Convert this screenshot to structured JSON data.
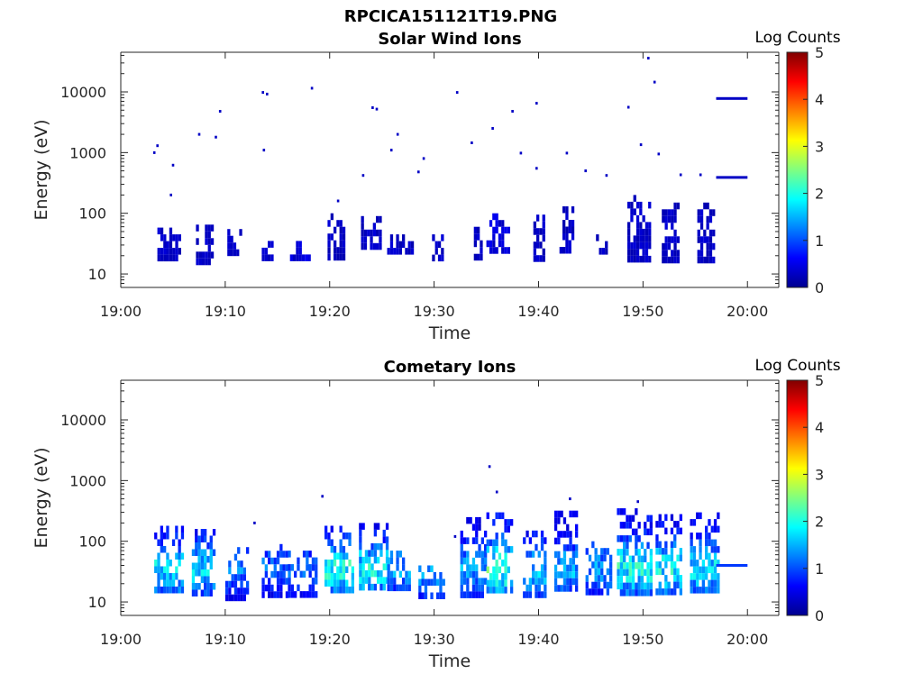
{
  "figure": {
    "filename_title": "RPCICA151121T19.PNG"
  },
  "colormap": [
    "#00008f",
    "#0000ff",
    "#0080ff",
    "#00ffff",
    "#80ff80",
    "#ffff00",
    "#ff8000",
    "#ff0000",
    "#800000"
  ],
  "chart_data": [
    {
      "type": "heatmap",
      "title": "Solar Wind Ions",
      "xlabel": "Time",
      "ylabel": "Energy (eV)",
      "yscale": "log",
      "xlim": [
        "19:00",
        "20:03"
      ],
      "ylim": [
        6,
        45000
      ],
      "xticks": [
        "19:00",
        "19:10",
        "19:20",
        "19:30",
        "19:40",
        "19:50",
        "20:00"
      ],
      "yticks": [
        "10",
        "100",
        "1000",
        "10000"
      ],
      "ytick_values": [
        10,
        100,
        1000,
        10000
      ],
      "colorbar": {
        "label": "Log Counts",
        "range": [
          0,
          5
        ],
        "ticks": [
          "0",
          "1",
          "2",
          "3",
          "4",
          "5"
        ]
      },
      "clusters": [
        {
          "t_start": "19:03.5",
          "t_end": "19:05.5",
          "e_min": 18,
          "e_max": 75,
          "level": 0.3
        },
        {
          "t_start": "19:07.2",
          "t_end": "19:08.8",
          "e_min": 14,
          "e_max": 65,
          "level": 0.3
        },
        {
          "t_start": "19:10.2",
          "t_end": "19:11.5",
          "e_min": 25,
          "e_max": 55,
          "level": 0.3
        },
        {
          "t_start": "19:13.5",
          "t_end": "19:14.5",
          "e_min": 20,
          "e_max": 35,
          "level": 0.3
        },
        {
          "t_start": "19:16.2",
          "t_end": "19:18.0",
          "e_min": 18,
          "e_max": 35,
          "level": 0.4
        },
        {
          "t_start": "19:19.8",
          "t_end": "19:21.5",
          "e_min": 20,
          "e_max": 100,
          "level": 0.3
        },
        {
          "t_start": "19:23.0",
          "t_end": "19:24.8",
          "e_min": 25,
          "e_max": 90,
          "level": 0.3
        },
        {
          "t_start": "19:25.5",
          "t_end": "19:27.8",
          "e_min": 25,
          "e_max": 45,
          "level": 0.3
        },
        {
          "t_start": "19:29.8",
          "t_end": "19:30.8",
          "e_min": 18,
          "e_max": 45,
          "level": 0.3
        },
        {
          "t_start": "19:33.8",
          "t_end": "19:34.5",
          "e_min": 20,
          "e_max": 100,
          "level": 0.3
        },
        {
          "t_start": "19:35.0",
          "t_end": "19:37.2",
          "e_min": 25,
          "e_max": 100,
          "level": 0.4
        },
        {
          "t_start": "19:39.5",
          "t_end": "19:40.6",
          "e_min": 18,
          "e_max": 95,
          "level": 0.3
        },
        {
          "t_start": "19:42.0",
          "t_end": "19:43.2",
          "e_min": 25,
          "e_max": 130,
          "level": 0.3
        },
        {
          "t_start": "19:45.5",
          "t_end": "19:46.5",
          "e_min": 25,
          "e_max": 45,
          "level": 0.3
        },
        {
          "t_start": "19:48.5",
          "t_end": "19:50.5",
          "e_min": 18,
          "e_max": 200,
          "level": 0.3
        },
        {
          "t_start": "19:51.8",
          "t_end": "19:53.4",
          "e_min": 18,
          "e_max": 150,
          "level": 0.3
        },
        {
          "t_start": "19:55.2",
          "t_end": "19:56.8",
          "e_min": 18,
          "e_max": 150,
          "level": 0.3
        }
      ],
      "isolated_points": [
        {
          "t": "19:03.2",
          "e": 1000
        },
        {
          "t": "19:03.5",
          "e": 1300
        },
        {
          "t": "19:05.0",
          "e": 620
        },
        {
          "t": "19:04.8",
          "e": 200
        },
        {
          "t": "19:07.5",
          "e": 2000
        },
        {
          "t": "19:09.1",
          "e": 1800
        },
        {
          "t": "19:09.5",
          "e": 4800
        },
        {
          "t": "19:13.6",
          "e": 9800
        },
        {
          "t": "19:14.0",
          "e": 9200
        },
        {
          "t": "19:13.7",
          "e": 1100
        },
        {
          "t": "19:18.3",
          "e": 11500
        },
        {
          "t": "19:20.8",
          "e": 160
        },
        {
          "t": "19:23.2",
          "e": 420
        },
        {
          "t": "19:24.1",
          "e": 5500
        },
        {
          "t": "19:24.5",
          "e": 5200
        },
        {
          "t": "19:25.9",
          "e": 1100
        },
        {
          "t": "19:26.5",
          "e": 2000
        },
        {
          "t": "19:28.5",
          "e": 480
        },
        {
          "t": "19:29.0",
          "e": 800
        },
        {
          "t": "19:32.2",
          "e": 9800
        },
        {
          "t": "19:33.6",
          "e": 1450
        },
        {
          "t": "19:35.6",
          "e": 2500
        },
        {
          "t": "19:37.5",
          "e": 4800
        },
        {
          "t": "19:38.3",
          "e": 980
        },
        {
          "t": "19:39.8",
          "e": 550
        },
        {
          "t": "19:39.8",
          "e": 6500
        },
        {
          "t": "19:42.7",
          "e": 980
        },
        {
          "t": "19:44.5",
          "e": 500
        },
        {
          "t": "19:46.5",
          "e": 420
        },
        {
          "t": "19:48.6",
          "e": 5600
        },
        {
          "t": "19:49.8",
          "e": 1350
        },
        {
          "t": "19:50.5",
          "e": 36000
        },
        {
          "t": "19:51.1",
          "e": 14500
        },
        {
          "t": "19:51.5",
          "e": 950
        },
        {
          "t": "19:53.6",
          "e": 430
        },
        {
          "t": "19:55.5",
          "e": 430
        }
      ],
      "lines": [
        {
          "t_start": "19:57.0",
          "t_end": "20:00.0",
          "e": 7800,
          "level": 0.3
        },
        {
          "t_start": "19:57.0",
          "t_end": "20:00.0",
          "e": 390,
          "level": 0.3
        }
      ]
    },
    {
      "type": "heatmap",
      "title": "Cometary Ions",
      "xlabel": "Time",
      "ylabel": "Energy (eV)",
      "yscale": "log",
      "xlim": [
        "19:00",
        "20:03"
      ],
      "ylim": [
        6,
        45000
      ],
      "xticks": [
        "19:00",
        "19:10",
        "19:20",
        "19:30",
        "19:40",
        "19:50",
        "20:00"
      ],
      "yticks": [
        "10",
        "100",
        "1000",
        "10000"
      ],
      "ytick_values": [
        10,
        100,
        1000,
        10000
      ],
      "colorbar": {
        "label": "Log Counts",
        "range": [
          0,
          5
        ],
        "ticks": [
          "0",
          "1",
          "2",
          "3",
          "4",
          "5"
        ]
      },
      "clusters": [
        {
          "t_start": "19:03.2",
          "t_end": "19:06.0",
          "e_min": 16,
          "e_max": 180,
          "level": 1.5
        },
        {
          "t_start": "19:06.8",
          "t_end": "19:09.0",
          "e_min": 14,
          "e_max": 160,
          "level": 1.5
        },
        {
          "t_start": "19:10.0",
          "t_end": "19:12.0",
          "e_min": 12,
          "e_max": 80,
          "level": 1.1
        },
        {
          "t_start": "19:13.5",
          "t_end": "19:15.8",
          "e_min": 12,
          "e_max": 90,
          "level": 1.0
        },
        {
          "t_start": "19:16.0",
          "t_end": "19:18.6",
          "e_min": 12,
          "e_max": 70,
          "level": 1.0
        },
        {
          "t_start": "19:19.5",
          "t_end": "19:22.2",
          "e_min": 16,
          "e_max": 180,
          "level": 1.7
        },
        {
          "t_start": "19:22.8",
          "t_end": "19:25.5",
          "e_min": 16,
          "e_max": 200,
          "level": 1.6
        },
        {
          "t_start": "19:25.5",
          "t_end": "19:27.5",
          "e_min": 16,
          "e_max": 70,
          "level": 1.2
        },
        {
          "t_start": "19:28.5",
          "t_end": "19:31.0",
          "e_min": 12,
          "e_max": 40,
          "level": 1.3
        },
        {
          "t_start": "19:32.5",
          "t_end": "19:34.8",
          "e_min": 12,
          "e_max": 250,
          "level": 1.2
        },
        {
          "t_start": "19:35.0",
          "t_end": "19:37.5",
          "e_min": 16,
          "e_max": 300,
          "level": 1.9
        },
        {
          "t_start": "19:38.5",
          "t_end": "19:40.6",
          "e_min": 12,
          "e_max": 150,
          "level": 1.4
        },
        {
          "t_start": "19:41.5",
          "t_end": "19:43.5",
          "e_min": 16,
          "e_max": 320,
          "level": 1.3
        },
        {
          "t_start": "19:44.5",
          "t_end": "19:46.8",
          "e_min": 16,
          "e_max": 100,
          "level": 1.2
        },
        {
          "t_start": "19:47.5",
          "t_end": "19:50.8",
          "e_min": 16,
          "e_max": 350,
          "level": 1.7
        },
        {
          "t_start": "19:51.2",
          "t_end": "19:53.6",
          "e_min": 16,
          "e_max": 280,
          "level": 1.6
        },
        {
          "t_start": "19:54.5",
          "t_end": "19:57.2",
          "e_min": 16,
          "e_max": 300,
          "level": 1.5
        }
      ],
      "isolated_points": [
        {
          "t": "19:19.3",
          "e": 550
        },
        {
          "t": "19:35.3",
          "e": 1700
        },
        {
          "t": "19:36.0",
          "e": 650
        },
        {
          "t": "19:12.8",
          "e": 200
        },
        {
          "t": "19:32.0",
          "e": 120
        },
        {
          "t": "19:43.0",
          "e": 500
        },
        {
          "t": "19:49.5",
          "e": 450
        }
      ],
      "lines": [
        {
          "t_start": "19:57.0",
          "t_end": "20:00.0",
          "e": 40,
          "level": 0.9
        }
      ]
    }
  ]
}
